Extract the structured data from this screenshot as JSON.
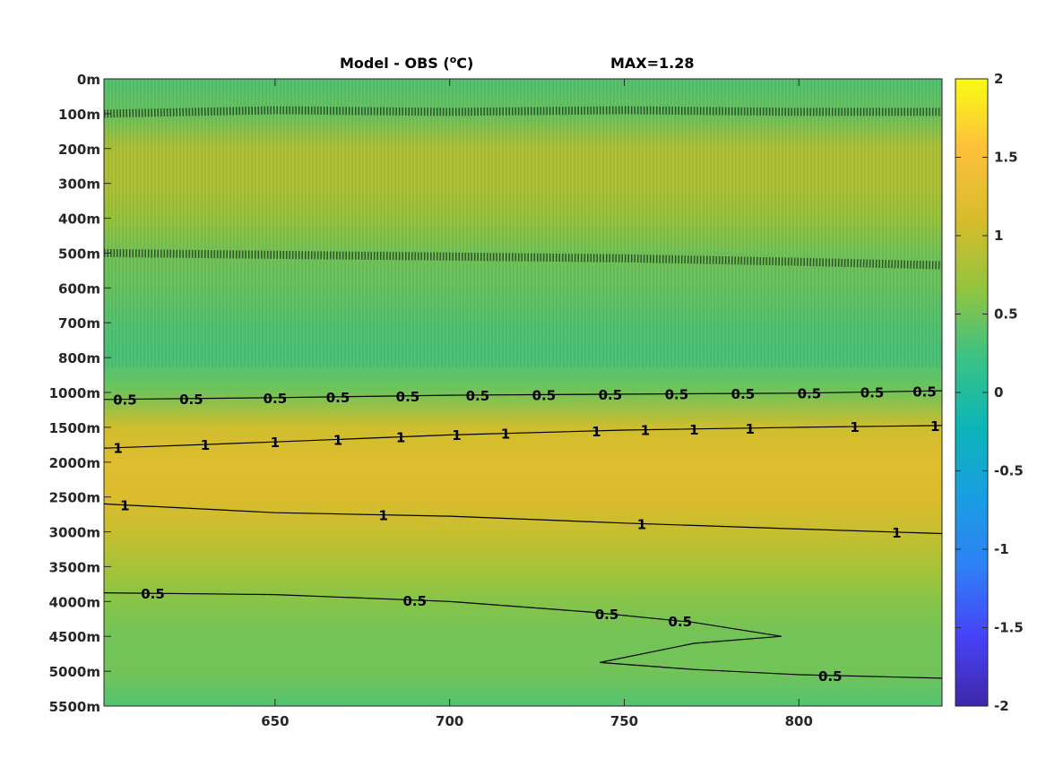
{
  "chart_data": {
    "type": "heatmap",
    "title": "Model - OBS (",
    "title_superscript": "o",
    "title_unit": "C)",
    "max_label": "MAX=1.28",
    "x_ticks": [
      650,
      700,
      750,
      800
    ],
    "xlim": [
      601,
      841
    ],
    "y_tick_labels": [
      "0m",
      "100m",
      "200m",
      "300m",
      "400m",
      "500m",
      "600m",
      "700m",
      "800m",
      "1000m",
      "1500m",
      "2000m",
      "2500m",
      "3000m",
      "3500m",
      "4000m",
      "4500m",
      "5000m",
      "5500m"
    ],
    "colorbar": {
      "range": [
        -2,
        2
      ],
      "ticks": [
        -2,
        -1.5,
        -1,
        -0.5,
        0,
        0.5,
        1,
        1.5,
        2
      ],
      "colors": [
        "#3e26a8",
        "#4743f8",
        "#2f80f5",
        "#199ee1",
        "#0cb5b8",
        "#3ac284",
        "#93c43e",
        "#d8bc2b",
        "#fdc03b",
        "#f9fb14"
      ]
    },
    "field": [
      {
        "depth_index": 0,
        "value": 0.35
      },
      {
        "depth_index": 1,
        "value": 0.45
      },
      {
        "depth_index": 2,
        "value": 0.85
      },
      {
        "depth_index": 3,
        "value": 0.85
      },
      {
        "depth_index": 4,
        "value": 0.7
      },
      {
        "depth_index": 5,
        "value": 0.5
      },
      {
        "depth_index": 6,
        "value": 0.45
      },
      {
        "depth_index": 7,
        "value": 0.35
      },
      {
        "depth_index": 8,
        "value": 0.3
      },
      {
        "depth_index": 9,
        "value": 0.5
      },
      {
        "depth_index": 10,
        "value": 1.05
      },
      {
        "depth_index": 11,
        "value": 1.2
      },
      {
        "depth_index": 12,
        "value": 1.15
      },
      {
        "depth_index": 13,
        "value": 1.0
      },
      {
        "depth_index": 14,
        "value": 0.8
      },
      {
        "depth_index": 15,
        "value": 0.6
      },
      {
        "depth_index": 16,
        "value": 0.5
      },
      {
        "depth_index": 17,
        "value": 0.5
      },
      {
        "depth_index": 18,
        "value": 0.35
      }
    ],
    "contours": [
      {
        "level": "0.5",
        "points": [
          [
            601,
            9.2
          ],
          [
            650,
            9.15
          ],
          [
            700,
            9.08
          ],
          [
            750,
            9.05
          ],
          [
            800,
            9.02
          ],
          [
            841,
            8.95
          ]
        ],
        "label_x": [
          607,
          626,
          650,
          668,
          688,
          708,
          727,
          746,
          765,
          784,
          803,
          821,
          836
        ]
      },
      {
        "level": "1",
        "points": [
          [
            601,
            10.6
          ],
          [
            650,
            10.42
          ],
          [
            700,
            10.22
          ],
          [
            750,
            10.08
          ],
          [
            800,
            10.0
          ],
          [
            841,
            9.95
          ]
        ],
        "label_x": [
          605,
          630,
          650,
          668,
          686,
          702,
          716,
          742,
          756,
          770,
          786,
          816,
          839
        ]
      },
      {
        "level": "1",
        "points": [
          [
            601,
            12.2
          ],
          [
            650,
            12.45
          ],
          [
            700,
            12.55
          ],
          [
            750,
            12.75
          ],
          [
            800,
            12.92
          ],
          [
            841,
            13.05
          ]
        ],
        "label_x": [
          607,
          681,
          755,
          828
        ]
      },
      {
        "level": "0.5",
        "points": [
          [
            601,
            14.75
          ],
          [
            650,
            14.8
          ],
          [
            700,
            15.0
          ],
          [
            740,
            15.3
          ],
          [
            770,
            15.6
          ],
          [
            795,
            16.0
          ],
          [
            770,
            16.2
          ],
          [
            743,
            16.75
          ],
          [
            770,
            16.95
          ],
          [
            800,
            17.1
          ],
          [
            841,
            17.2
          ]
        ],
        "label_x": [
          615,
          690,
          766,
          745,
          809
        ]
      },
      {
        "level": "0",
        "points": [
          [
            601,
            1.0
          ],
          [
            650,
            0.9
          ],
          [
            700,
            0.95
          ],
          [
            750,
            0.9
          ],
          [
            800,
            0.95
          ],
          [
            841,
            0.95
          ]
        ],
        "label_x": []
      },
      {
        "level": "0",
        "points": [
          [
            601,
            5.0
          ],
          [
            650,
            5.05
          ],
          [
            700,
            5.1
          ],
          [
            750,
            5.15
          ],
          [
            800,
            5.25
          ],
          [
            841,
            5.35
          ]
        ],
        "label_x": []
      }
    ]
  }
}
